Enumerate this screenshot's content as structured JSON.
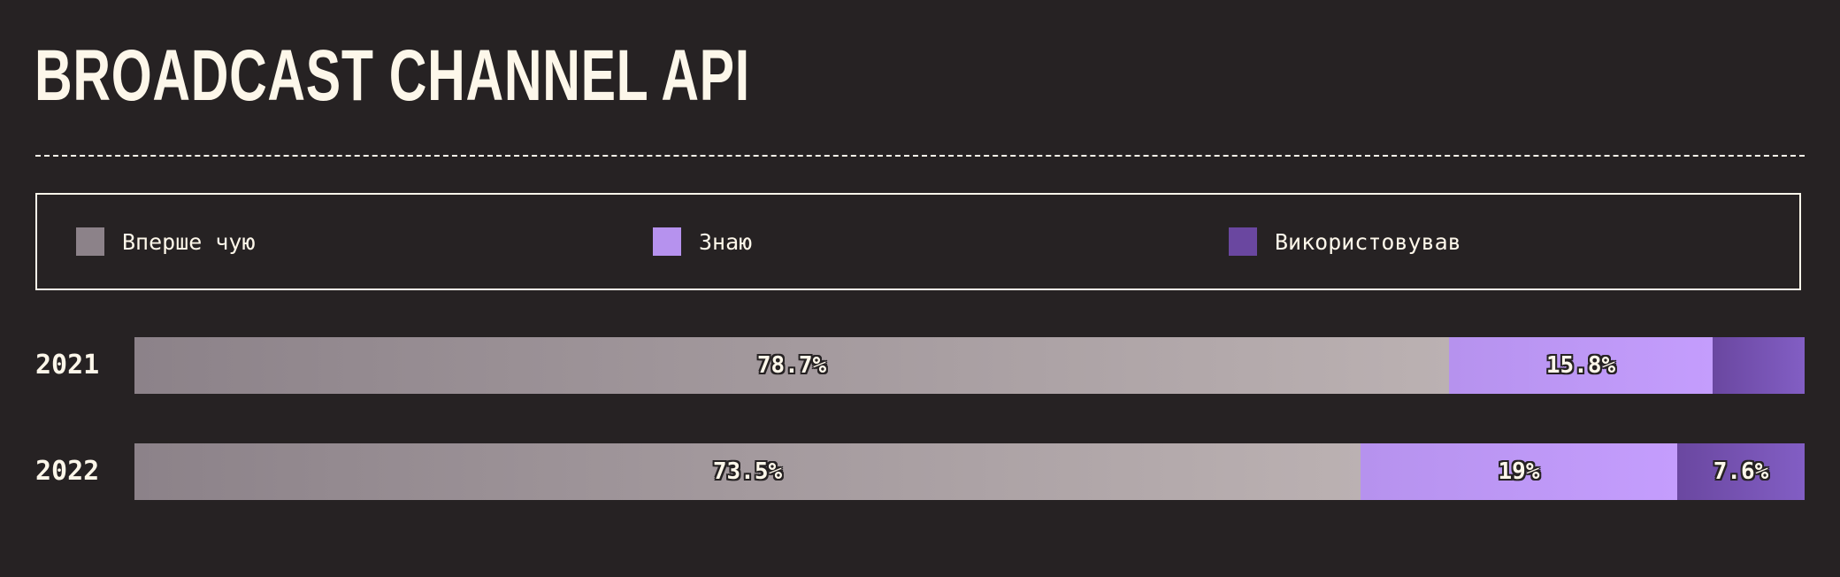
{
  "chart_data": {
    "type": "bar",
    "orientation": "horizontal",
    "stacked": true,
    "title": "BROADCAST CHANNEL API",
    "categories": [
      "2021",
      "2022"
    ],
    "series": [
      {
        "name": "Вперше чую",
        "values": [
          78.7,
          73.5
        ],
        "labels": [
          "78.7%",
          "73.5%"
        ],
        "color_from": "#8c8289",
        "color_to": "#bbb1b2"
      },
      {
        "name": "Знаю",
        "values": [
          15.8,
          19
        ],
        "labels": [
          "15.8%",
          "19%"
        ],
        "color_from": "#b692ee",
        "color_to": "#c49dfd"
      },
      {
        "name": "Використовував",
        "values": [
          5.5,
          7.6
        ],
        "labels": [
          "",
          "7.6%"
        ],
        "color_from": "#6a47a0",
        "color_to": "#825ec4"
      }
    ],
    "legend": "top",
    "grid": false
  },
  "colors": {
    "background": "#262223",
    "foreground": "#fdf7ea"
  }
}
